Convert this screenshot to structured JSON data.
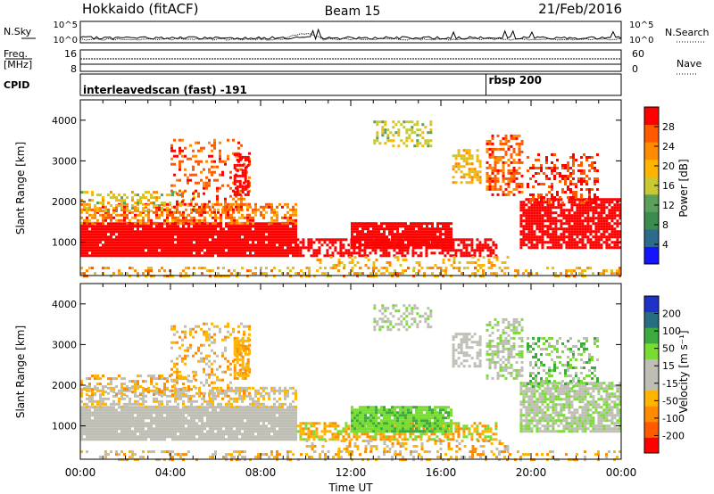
{
  "header": {
    "station": "Hokkaido (fitACF)",
    "beam": "Beam 15",
    "date": "21/Feb/2016"
  },
  "strip": {
    "nsky_label": "N.Sky",
    "nsky_ticks": [
      "10^5",
      "10^0"
    ],
    "freq_label_1": "Freq.",
    "freq_label_2": "[MHz]",
    "freq_ticks": [
      "16",
      "8"
    ],
    "cpid_label": "CPID",
    "nsearch_label": "N.Search",
    "nave_label": "Nave",
    "nave_ticks": [
      "60",
      "0"
    ],
    "nsky_right_ticks": [
      "10^5",
      "10^0"
    ],
    "cpid_segments": [
      {
        "label": "interleavedscan (fast) -191",
        "start": 0
      },
      {
        "label": "rbsp 200",
        "start": 18.0
      }
    ]
  },
  "colors": {
    "power": [
      "#1414ff",
      "#2d6b8c",
      "#3c8c50",
      "#5aa05a",
      "#c8c832",
      "#ffb400",
      "#ff8c00",
      "#ff5a00",
      "#ff0000"
    ],
    "velocity": [
      "#ff0000",
      "#ff5a00",
      "#ff8c00",
      "#ffb400",
      "#bebeb4",
      "#bebeb4",
      "#78dc32",
      "#3caa3c",
      "#286e82",
      "#1e32c8"
    ]
  },
  "chart_data": [
    {
      "type": "heatmap",
      "panel": "power",
      "xlabel": "",
      "ylabel": "Slant Range [km]",
      "x_ticks": [
        "00:00",
        "04:00",
        "08:00",
        "12:00",
        "16:00",
        "20:00",
        "00:00"
      ],
      "xlim": [
        0,
        24
      ],
      "ylim": [
        180,
        4500
      ],
      "y_ticks": [
        1000,
        2000,
        3000,
        4000
      ],
      "colorbar_label": "Power [dB]",
      "colorbar_ticks": [
        "4",
        "8",
        "12",
        "16",
        "20",
        "24",
        "28"
      ],
      "colorbar_range": [
        0,
        30
      ]
    },
    {
      "type": "heatmap",
      "panel": "velocity",
      "xlabel": "Time UT",
      "ylabel": "Slant Range [km]",
      "x_ticks": [
        "00:00",
        "04:00",
        "08:00",
        "12:00",
        "16:00",
        "20:00",
        "00:00"
      ],
      "xlim": [
        0,
        24
      ],
      "ylim": [
        180,
        4500
      ],
      "y_ticks": [
        1000,
        2000,
        3000,
        4000
      ],
      "colorbar_label": "Velocity [m s⁻¹]",
      "colorbar_ticks": [
        "200",
        "100",
        "50",
        "15",
        "-15",
        "-50",
        "-100",
        "-200"
      ],
      "colorbar_range": [
        -250,
        250
      ]
    }
  ]
}
